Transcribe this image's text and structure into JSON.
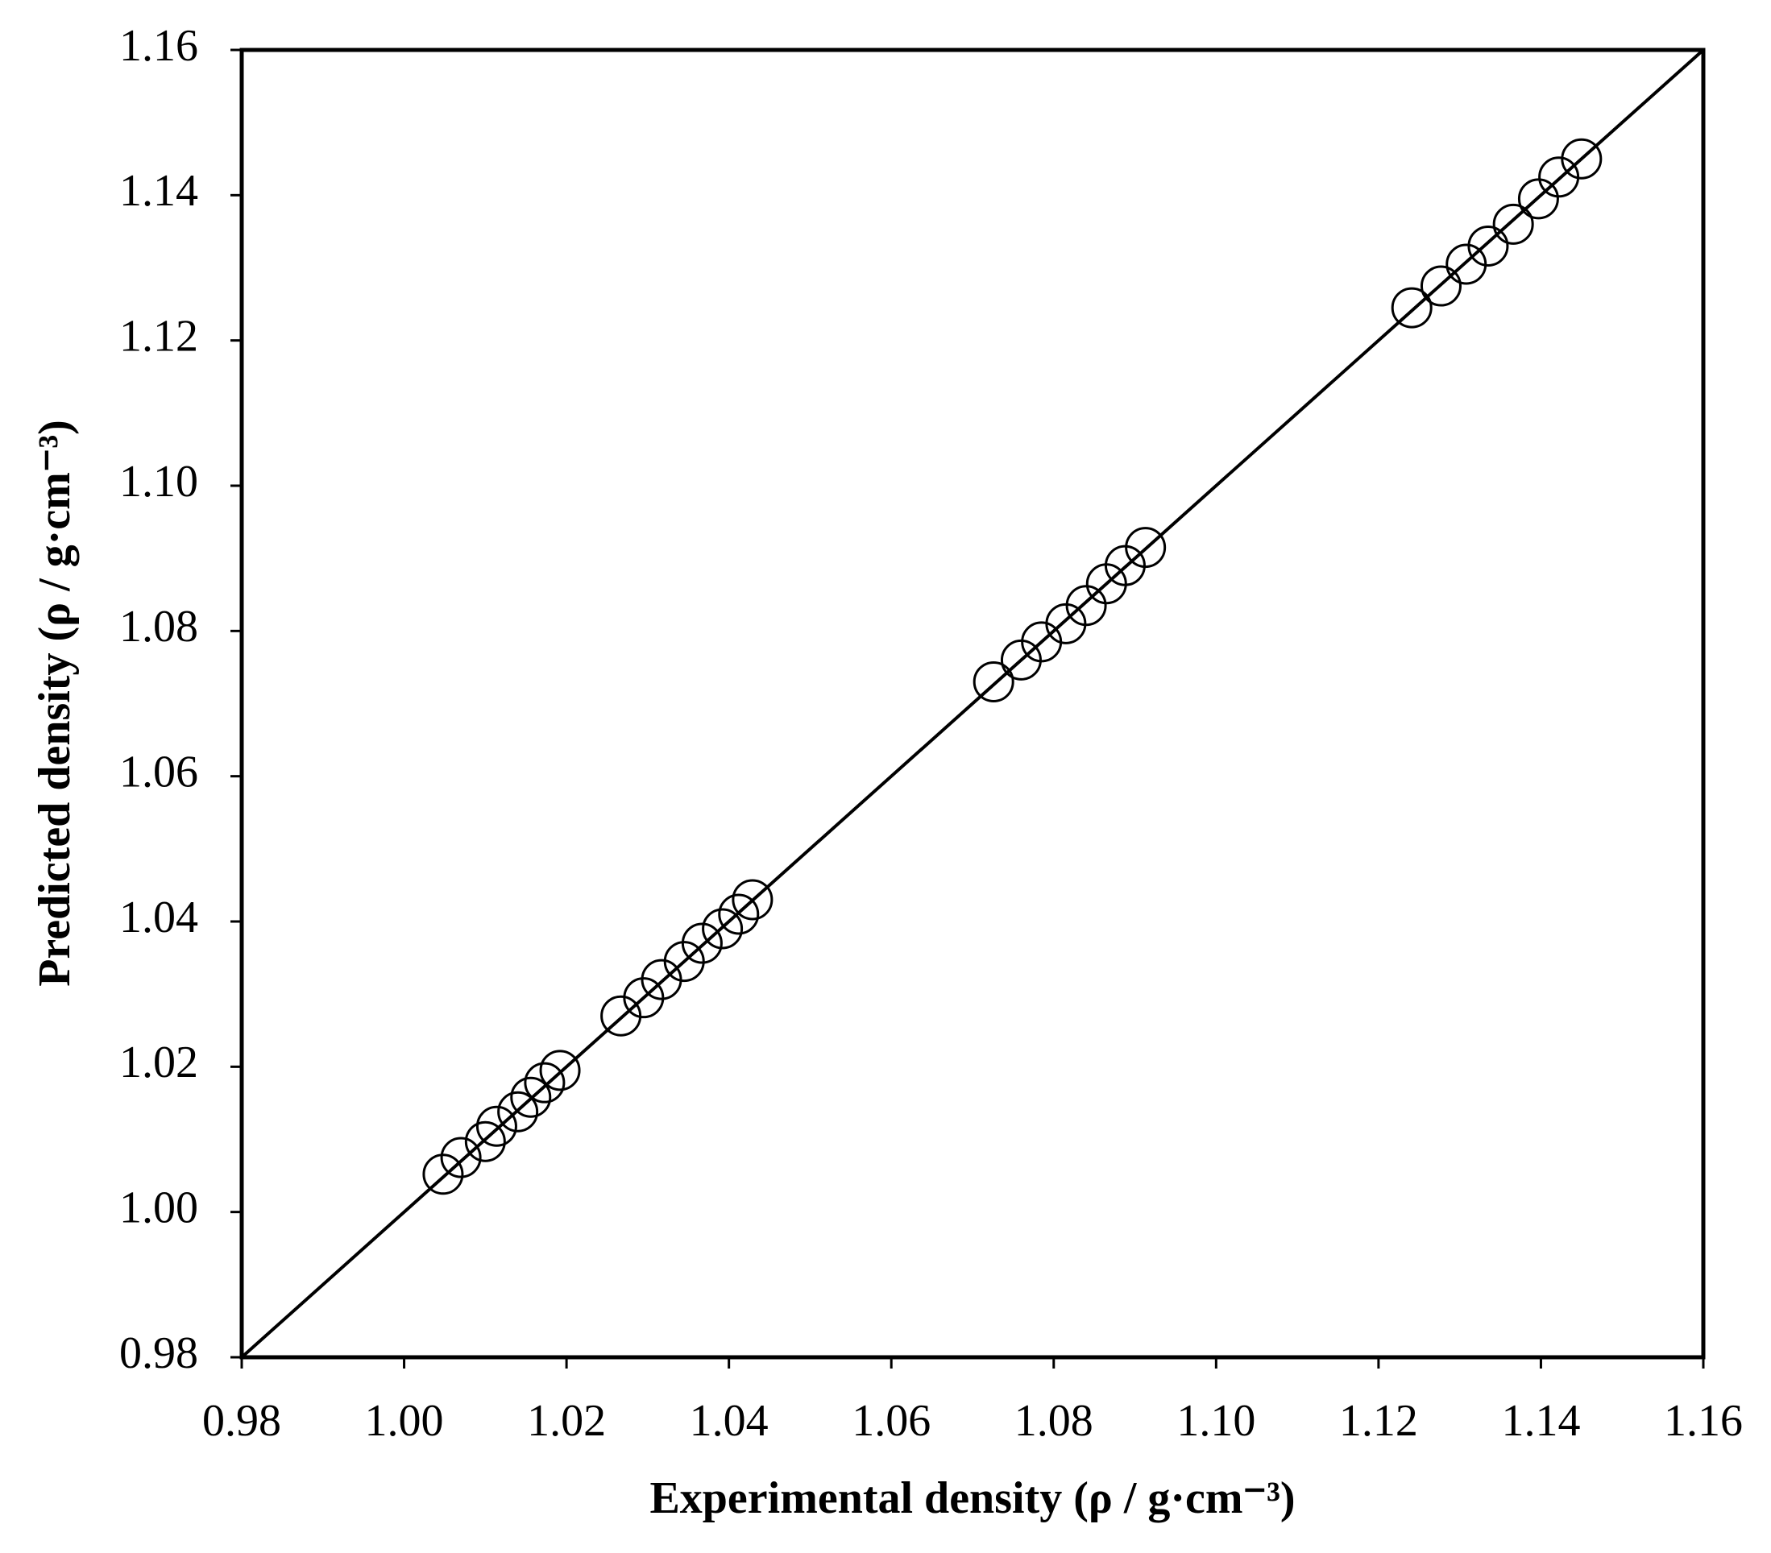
{
  "chart_data": {
    "type": "scatter",
    "xlabel": "Experimental density (ρ / g·cm⁻³)",
    "ylabel": "Predicted density (ρ / g·cm⁻³)",
    "xlim": [
      0.98,
      1.16
    ],
    "ylim": [
      0.98,
      1.16
    ],
    "xticks": [
      0.98,
      {
        "value": 1.0,
        "label": "1.00"
      },
      1.02,
      1.04,
      1.06,
      1.08,
      {
        "value": 1.1,
        "label": "1.10"
      },
      1.12,
      1.14,
      1.16
    ],
    "yticks": [
      0.98,
      {
        "value": 1.0,
        "label": "1.00"
      },
      1.02,
      1.04,
      1.06,
      1.08,
      {
        "value": 1.1,
        "label": "1.10"
      },
      1.12,
      1.14,
      1.16
    ],
    "color": "#000000",
    "x": [
      1.0048,
      1.007,
      1.01,
      1.0114,
      1.014,
      1.0156,
      1.0173,
      1.0192,
      1.0267,
      1.0295,
      1.0317,
      1.0345,
      1.0367,
      1.0392,
      1.0412,
      1.0429,
      1.0726,
      1.076,
      1.0785,
      1.0815,
      1.084,
      1.0865,
      1.0888,
      1.0913,
      1.1241,
      1.1277,
      1.1308,
      1.1335,
      1.1366,
      1.1397,
      1.1422,
      1.145
    ],
    "y": [
      1.0052,
      1.0075,
      1.0097,
      1.0118,
      1.0138,
      1.0158,
      1.0178,
      1.0195,
      1.027,
      1.0295,
      1.032,
      1.0345,
      1.037,
      1.039,
      1.041,
      1.043,
      1.073,
      1.076,
      1.0785,
      1.081,
      1.0835,
      1.0865,
      1.089,
      1.0915,
      1.1245,
      1.1275,
      1.1305,
      1.133,
      1.136,
      1.1395,
      1.1425,
      1.145
    ]
  }
}
